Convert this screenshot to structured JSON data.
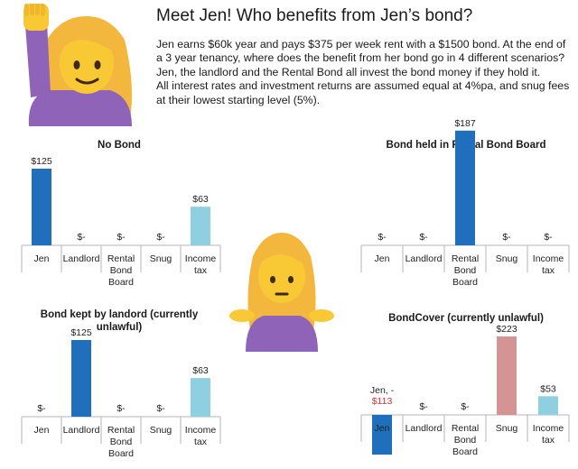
{
  "header": {
    "title": "Meet Jen! Who benefits from Jen’s bond?",
    "paragraph1": "Jen earns $60k year and pays $375 per week rent with a $1500 bond. At the end of a 3 year tenancy, where does the benefit from her bond go in 4 different scenarios? Jen, the landlord and the Rental Bond all invest the bond money if they hold it.",
    "paragraph2": "All interest rates and investment returns are assumed equal at 4%pa, and snug fees at their lowest starting level (5%)."
  },
  "icons": {
    "top_left": "woman-raising-hand-emoji",
    "center": "woman-shrugging-emoji"
  },
  "colors": {
    "bar_blue": "#1f6fbd",
    "bar_light_blue": "#8ecfe0",
    "bar_pink": "#d49494",
    "negative_text": "#d32f2f",
    "axis": "#b5b5b5"
  },
  "chart_data": [
    {
      "type": "bar",
      "title": "No Bond",
      "categories": [
        "Jen",
        "Landlord",
        "Rental\nBond\nBoard",
        "Snug",
        "Income\ntax"
      ],
      "values": [
        125,
        0,
        0,
        0,
        63
      ],
      "value_labels": [
        "$125",
        "$-",
        "$-",
        "$-",
        "$63"
      ],
      "bar_colors": [
        "#1f6fbd",
        "#1f6fbd",
        "#1f6fbd",
        "#1f6fbd",
        "#8ecfe0"
      ]
    },
    {
      "type": "bar",
      "title": "Bond held in Rental Bond Board",
      "categories": [
        "Jen",
        "Landlord",
        "Rental\nBond\nBoard",
        "Snug",
        "Income\ntax"
      ],
      "values": [
        0,
        0,
        187,
        0,
        0
      ],
      "value_labels": [
        "$-",
        "$-",
        "$187",
        "$-",
        "$-"
      ],
      "bar_colors": [
        "#1f6fbd",
        "#1f6fbd",
        "#1f6fbd",
        "#1f6fbd",
        "#8ecfe0"
      ]
    },
    {
      "type": "bar",
      "title": "Bond kept by landord (currently\nunlawful)",
      "categories": [
        "Jen",
        "Landlord",
        "Rental\nBond\nBoard",
        "Snug",
        "Income\ntax"
      ],
      "values": [
        0,
        125,
        0,
        0,
        63
      ],
      "value_labels": [
        "$-",
        "$125",
        "$-",
        "$-",
        "$63"
      ],
      "bar_colors": [
        "#1f6fbd",
        "#1f6fbd",
        "#1f6fbd",
        "#1f6fbd",
        "#8ecfe0"
      ]
    },
    {
      "type": "bar",
      "title": "BondCover (currently unlawful)",
      "categories": [
        "Jen",
        "Landlord",
        "Rental\nBond\nBoard",
        "Snug",
        "Income\ntax"
      ],
      "values": [
        -113,
        0,
        0,
        223,
        53
      ],
      "value_labels": [
        "Jen, -\n$113",
        "$-",
        "$-",
        "$223",
        "$53"
      ],
      "bar_colors": [
        "#1f6fbd",
        "#1f6fbd",
        "#1f6fbd",
        "#d49494",
        "#8ecfe0"
      ]
    }
  ]
}
